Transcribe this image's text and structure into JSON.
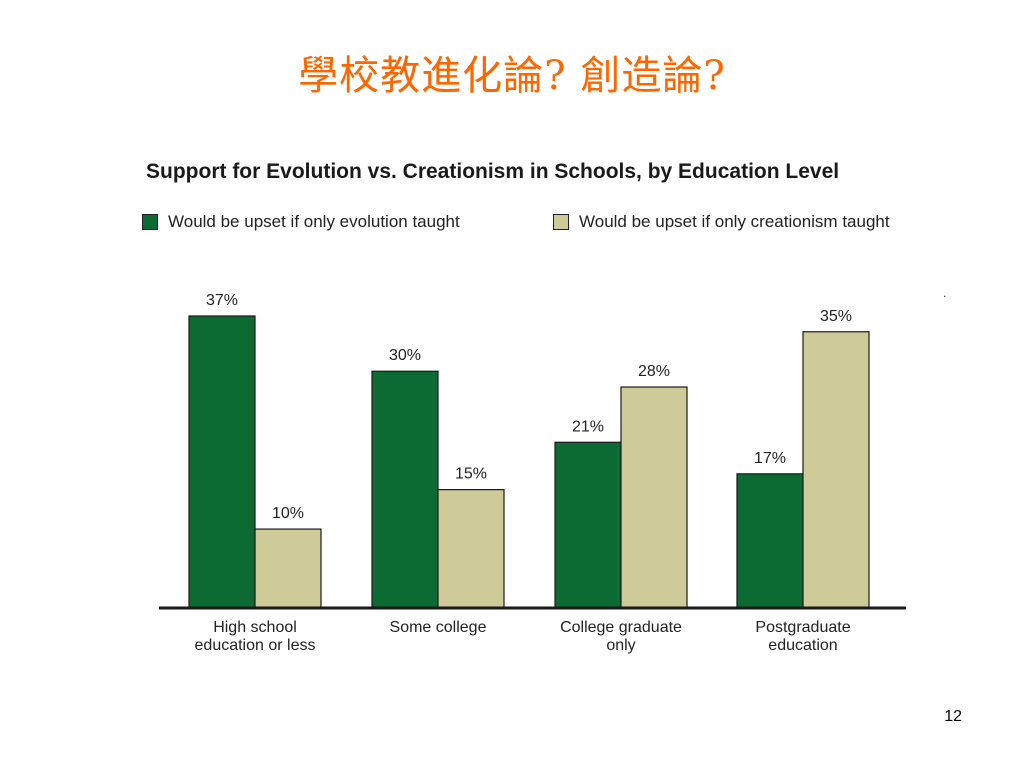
{
  "slide": {
    "title": "學校教進化論? 創造論?",
    "page_number": "12",
    "stray_mark": "."
  },
  "colors": {
    "title": "#ff6600",
    "evolution": "#0b6b32",
    "creationism": "#cfcb98",
    "outline": "#1a1a1a"
  },
  "chart_data": {
    "type": "bar",
    "title": "Support for Evolution vs. Creationism in Schools, by Education Level",
    "categories": [
      [
        "High school",
        "education or less"
      ],
      [
        "Some college"
      ],
      [
        "College graduate",
        "only"
      ],
      [
        "Postgraduate",
        "education"
      ]
    ],
    "series": [
      {
        "name": "Would be upset if only evolution taught",
        "values": [
          37,
          30,
          21,
          17
        ],
        "color": "#0b6b32"
      },
      {
        "name": "Would be upset if only creationism taught",
        "values": [
          10,
          15,
          28,
          35
        ],
        "color": "#cfcb98"
      }
    ],
    "value_suffix": "%",
    "ylim": [
      0,
      40
    ],
    "grid": false,
    "legend_position": "top-left"
  }
}
